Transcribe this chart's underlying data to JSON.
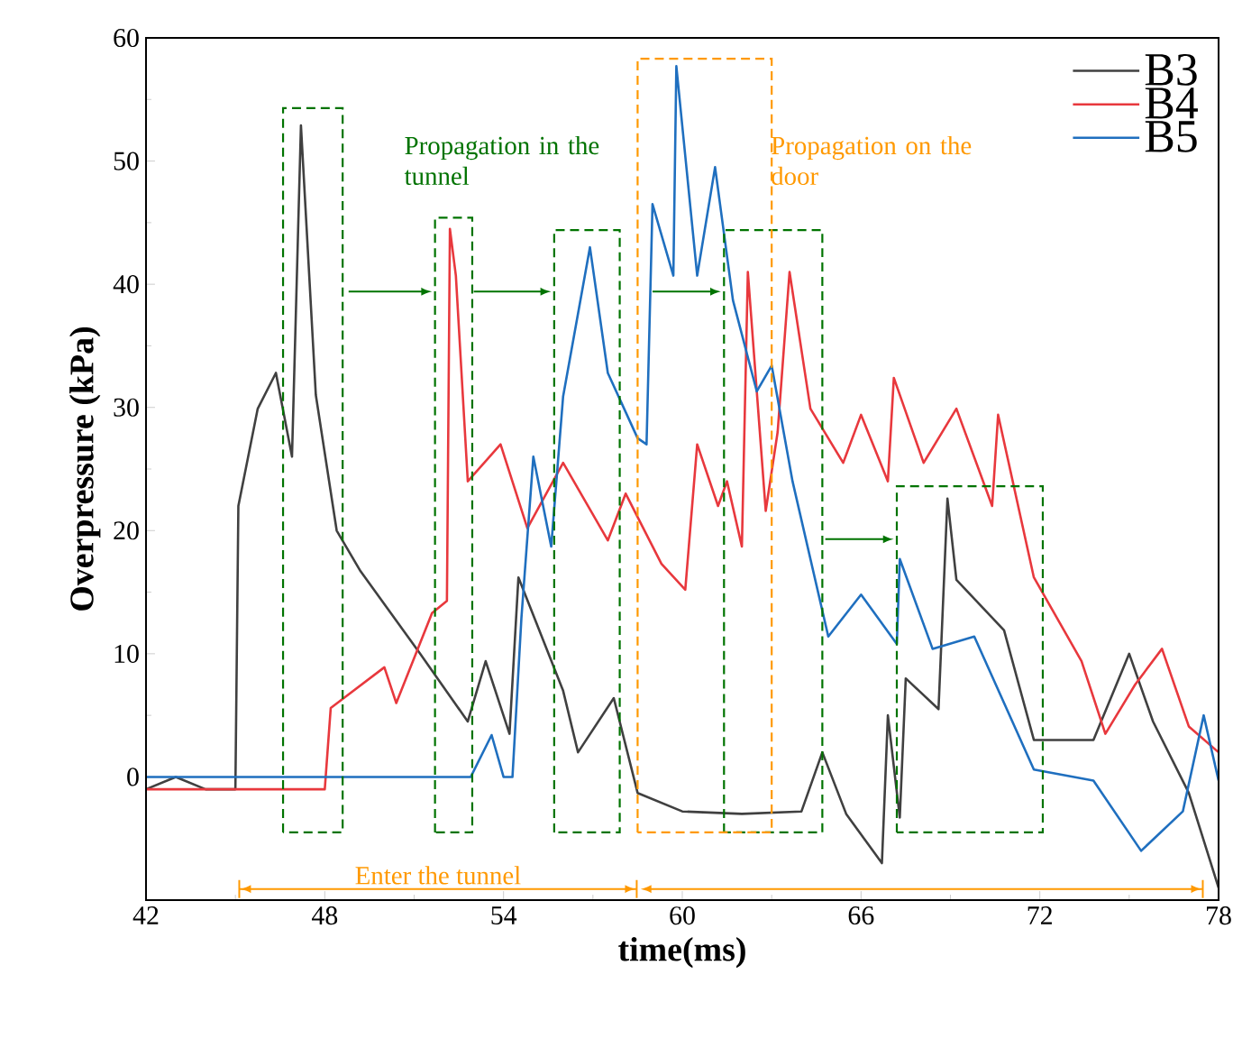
{
  "chart_data": {
    "type": "line",
    "xlabel": "time(ms)",
    "ylabel": "Overpressure (kPa)",
    "xlim": [
      42,
      78
    ],
    "xticks": [
      42,
      48,
      54,
      60,
      66,
      72,
      78
    ],
    "ylim": [
      -10,
      60
    ],
    "yticks": [
      0,
      10,
      20,
      30,
      40,
      50,
      60
    ],
    "legend": "top right",
    "grid": false,
    "marker": "none",
    "line_style": "solid",
    "annotations": [
      "Propagation in the tunnel",
      "Propagation on the door",
      "Enter the tunnel"
    ],
    "series": [
      {
        "name": "B3",
        "color": "#404040",
        "x": [
          42,
          43,
          44,
          45,
          45.1,
          45.75,
          46.36,
          46.9,
          47.2,
          47.7,
          48.4,
          49.2,
          51.2,
          52.8,
          53.4,
          54.2,
          54.5,
          56,
          56.5,
          57.7,
          58.5,
          60,
          62,
          64,
          64.7,
          65.5,
          66.7,
          66.9,
          67.3,
          67.5,
          68.6,
          68.9,
          69.2,
          70.8,
          71.8,
          73.8,
          75,
          75.8,
          77,
          78
        ],
        "values": [
          -1,
          0,
          -1,
          -1,
          22,
          29.9,
          32.8,
          26,
          52.9,
          31,
          20,
          16.7,
          10,
          4.5,
          9.4,
          3.5,
          16.2,
          7,
          2,
          6.4,
          -1.3,
          -2.8,
          -3,
          -2.8,
          2,
          -3,
          -7,
          5,
          -3.3,
          8,
          5.5,
          22.6,
          16,
          11.9,
          3,
          3,
          10,
          4.5,
          -1.3,
          -9
        ]
      },
      {
        "name": "B4",
        "color": "#e8383d",
        "x": [
          42,
          44,
          46,
          48,
          48.2,
          50,
          50.4,
          51.6,
          52.1,
          52.2,
          52.4,
          52.8,
          53.9,
          54.8,
          56,
          57.5,
          58.1,
          59.3,
          60.1,
          60.5,
          61.2,
          61.5,
          62,
          62.2,
          62.8,
          63.2,
          63.6,
          64.3,
          65.4,
          66,
          66.9,
          67.1,
          68.1,
          69.2,
          70.4,
          70.6,
          71.8,
          73.4,
          74.2,
          75.2,
          76.1,
          77,
          78
        ],
        "values": [
          -1,
          -1,
          -1,
          -1,
          5.6,
          8.9,
          6,
          13.3,
          14.3,
          44.5,
          40.7,
          24,
          27,
          20.2,
          25.5,
          19.2,
          23,
          17.3,
          15.2,
          27,
          22,
          24,
          18.7,
          41,
          21.6,
          28,
          41,
          29.9,
          25.5,
          29.4,
          24,
          32.4,
          25.5,
          29.9,
          22,
          29.4,
          16.2,
          9.4,
          3.5,
          7.5,
          10.4,
          4.1,
          2
        ]
      },
      {
        "name": "B5",
        "color": "#1f6fbf",
        "x": [
          42,
          45,
          48,
          51,
          52.9,
          53.6,
          54,
          54.3,
          54.6,
          55,
          55.6,
          56,
          56.9,
          57.5,
          58.5,
          58.8,
          59,
          59.7,
          59.8,
          60.5,
          61.1,
          61.7,
          62.5,
          63,
          63.7,
          64.9,
          66,
          67.2,
          67.3,
          68.4,
          69.8,
          71.8,
          73.8,
          75.4,
          76.8,
          77.5,
          78
        ],
        "values": [
          0,
          0,
          0,
          0,
          0,
          3.4,
          0,
          0,
          12.9,
          26,
          18.7,
          30.9,
          43,
          32.8,
          27.5,
          27,
          46.5,
          40.7,
          57.7,
          40.7,
          49.5,
          38.7,
          31.3,
          33.4,
          24,
          11.4,
          14.8,
          10.8,
          17.7,
          10.4,
          11.4,
          0.6,
          -0.3,
          -6,
          -2.8,
          5,
          -0.3
        ]
      }
    ]
  }
}
